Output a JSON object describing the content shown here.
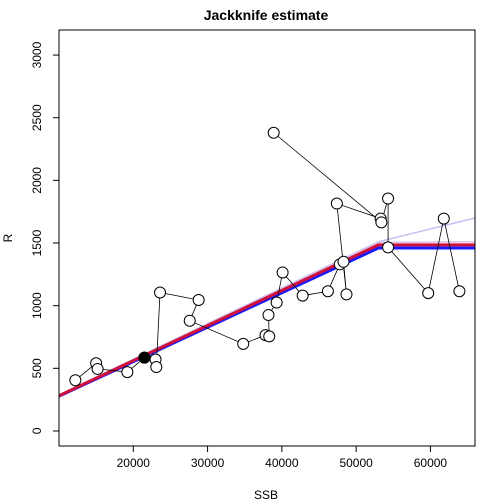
{
  "chart_data": {
    "type": "scatter",
    "title": "Jackknife estimate",
    "xlabel": "SSB",
    "ylabel": "R",
    "xlim": [
      10000,
      66000
    ],
    "ylim": [
      -120,
      3200
    ],
    "x_ticks": [
      20000,
      30000,
      40000,
      50000,
      60000
    ],
    "y_ticks": [
      0,
      500,
      1000,
      1500,
      2000,
      2500,
      3000
    ],
    "grid": false,
    "observations": [
      {
        "x": 12200,
        "y": 405
      },
      {
        "x": 15000,
        "y": 540
      },
      {
        "x": 15200,
        "y": 495
      },
      {
        "x": 19200,
        "y": 470
      },
      {
        "x": 21500,
        "y": 585
      },
      {
        "x": 23000,
        "y": 570
      },
      {
        "x": 23100,
        "y": 510
      },
      {
        "x": 23600,
        "y": 1105
      },
      {
        "x": 27600,
        "y": 880
      },
      {
        "x": 28800,
        "y": 1045
      },
      {
        "x": 34800,
        "y": 695
      },
      {
        "x": 37800,
        "y": 765
      },
      {
        "x": 38300,
        "y": 755
      },
      {
        "x": 38200,
        "y": 925
      },
      {
        "x": 39300,
        "y": 1025
      },
      {
        "x": 40100,
        "y": 1265
      },
      {
        "x": 42800,
        "y": 1080
      },
      {
        "x": 46200,
        "y": 1115
      },
      {
        "x": 47800,
        "y": 1330
      },
      {
        "x": 48300,
        "y": 1350
      },
      {
        "x": 48700,
        "y": 1090
      },
      {
        "x": 47400,
        "y": 1815
      },
      {
        "x": 53300,
        "y": 1695
      },
      {
        "x": 53400,
        "y": 1665
      },
      {
        "x": 54300,
        "y": 1855
      },
      {
        "x": 54300,
        "y": 1465
      },
      {
        "x": 59700,
        "y": 1100
      },
      {
        "x": 61800,
        "y": 1695
      },
      {
        "x": 63900,
        "y": 1115
      },
      {
        "x": 38900,
        "y": 2380
      }
    ],
    "path_order": [
      0,
      1,
      2,
      3,
      4,
      5,
      6,
      7,
      9,
      8,
      10,
      11,
      12,
      13,
      14,
      15,
      16,
      17,
      18,
      19,
      20,
      21,
      22,
      23,
      24,
      25,
      26,
      27,
      28
    ],
    "path_extra": [
      {
        "from": 29,
        "to": 23
      }
    ],
    "highlight_point": {
      "x": 21500,
      "y": 585
    },
    "fits": [
      {
        "color": "#c0c0f0",
        "breakpoint_x": 53000,
        "breakpoint_y": 1510,
        "slope": 0.0284,
        "plateau_end": 66000,
        "plateau_y": 1700,
        "width": 1.5
      },
      {
        "color": "#dcc0e8",
        "breakpoint_x": 53000,
        "breakpoint_y": 1505,
        "slope": 0.0284,
        "plateau_end": 66000,
        "plateau_y": 1510,
        "width": 1.5
      },
      {
        "color": "#1a1aff",
        "breakpoint_x": 53000,
        "breakpoint_y": 1460,
        "slope": 0.0275,
        "plateau_end": 66000,
        "plateau_y": 1460,
        "width": 3
      },
      {
        "color": "#d0103a",
        "breakpoint_x": 53000,
        "breakpoint_y": 1485,
        "slope": 0.028,
        "plateau_end": 66000,
        "plateau_y": 1485,
        "width": 3
      }
    ]
  }
}
